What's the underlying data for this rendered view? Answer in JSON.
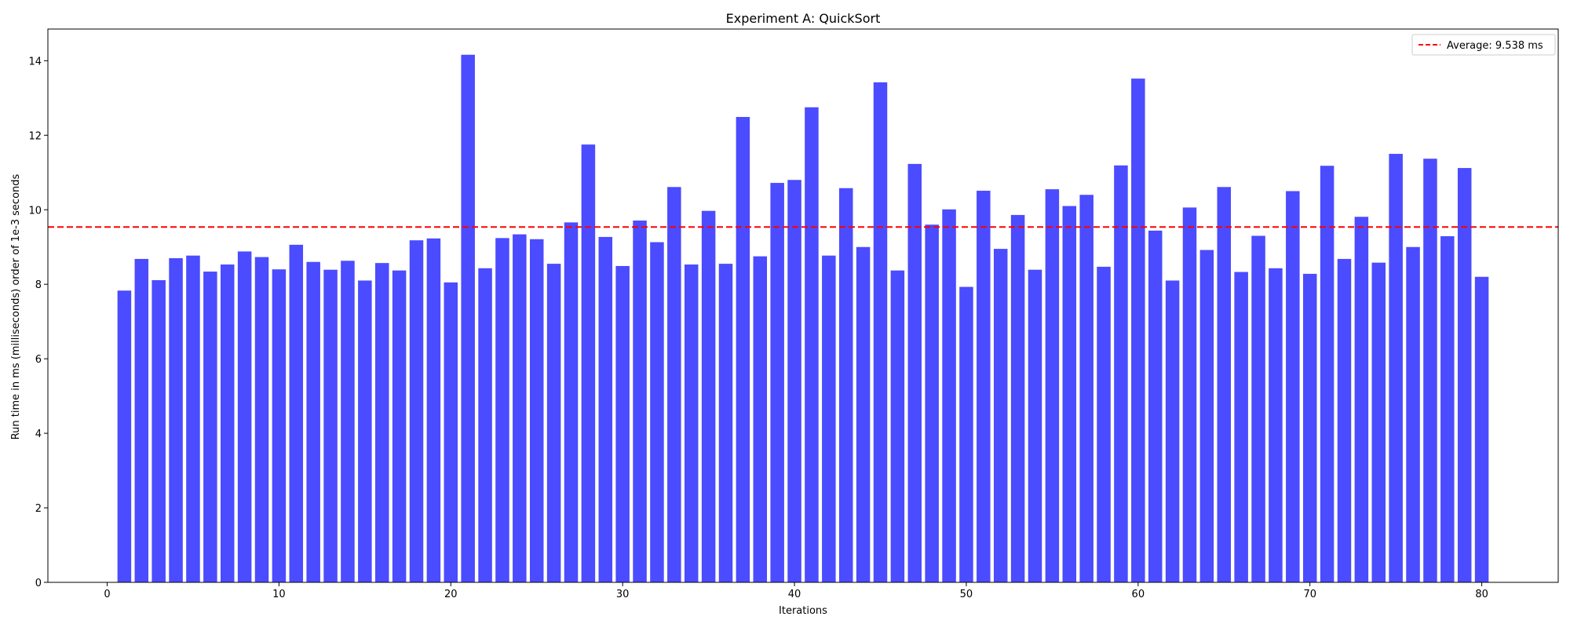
{
  "chart_data": {
    "type": "bar",
    "title": "Experiment A: QuickSort",
    "xlabel": "Iterations",
    "ylabel": "Run time in ms (milliseconds) order of 1e-3 seconds",
    "xlim": [
      -3.45,
      84.45
    ],
    "ylim": [
      0,
      14.85
    ],
    "xticks": [
      0,
      10,
      20,
      30,
      40,
      50,
      60,
      70,
      80
    ],
    "yticks": [
      0,
      2,
      4,
      6,
      8,
      10,
      12,
      14
    ],
    "grid": false,
    "bar_color": "#4b4bff",
    "categories": [
      1,
      2,
      3,
      4,
      5,
      6,
      7,
      8,
      9,
      10,
      11,
      12,
      13,
      14,
      15,
      16,
      17,
      18,
      19,
      20,
      21,
      22,
      23,
      24,
      25,
      26,
      27,
      28,
      29,
      30,
      31,
      32,
      33,
      34,
      35,
      36,
      37,
      38,
      39,
      40,
      41,
      42,
      43,
      44,
      45,
      46,
      47,
      48,
      49,
      50,
      51,
      52,
      53,
      54,
      55,
      56,
      57,
      58,
      59,
      60,
      61,
      62,
      63,
      64,
      65,
      66,
      67,
      68,
      69,
      70,
      71,
      72,
      73,
      74,
      75,
      76,
      77,
      78,
      79,
      80
    ],
    "values": [
      7.83,
      8.68,
      8.11,
      8.7,
      8.77,
      8.34,
      8.53,
      8.88,
      8.73,
      8.4,
      9.06,
      8.6,
      8.39,
      8.63,
      8.1,
      8.57,
      8.37,
      9.18,
      9.23,
      8.05,
      14.16,
      8.43,
      9.24,
      9.34,
      9.21,
      8.55,
      9.66,
      11.75,
      9.27,
      8.49,
      9.71,
      9.13,
      10.61,
      8.53,
      9.97,
      8.55,
      12.49,
      8.75,
      10.72,
      10.8,
      12.75,
      8.77,
      10.58,
      9.0,
      13.42,
      8.37,
      11.23,
      9.6,
      10.01,
      7.93,
      10.51,
      8.95,
      9.86,
      8.39,
      10.55,
      10.1,
      10.4,
      8.47,
      11.19,
      13.52,
      9.44,
      8.1,
      10.06,
      8.92,
      10.61,
      8.33,
      9.3,
      8.43,
      10.5,
      8.28,
      11.18,
      8.68,
      9.81,
      8.58,
      11.5,
      9.0,
      11.37,
      9.29,
      11.12,
      8.2
    ],
    "average": {
      "value": 9.538,
      "color": "#ff0000",
      "label": "Average: 9.538 ms"
    },
    "legend": {
      "placement": "top-right",
      "entries": [
        "Average: 9.538 ms"
      ]
    }
  }
}
